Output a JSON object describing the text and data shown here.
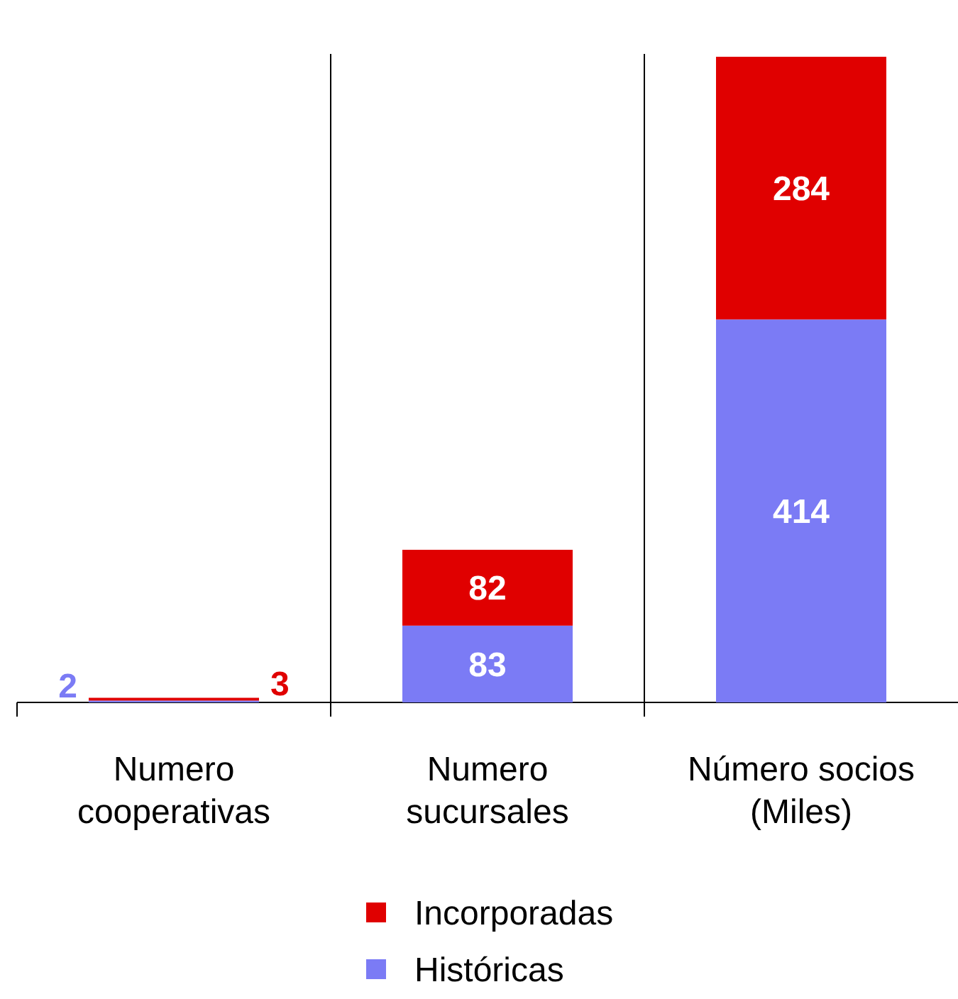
{
  "chart_data": {
    "type": "bar",
    "stacked": true,
    "data_labels": true,
    "legend": "bottom",
    "categories": [
      "Numero cooperativas",
      "Numero sucursales",
      "Número socios (Miles)"
    ],
    "series": [
      {
        "name": "Históricas",
        "color": "#7b7bf5",
        "values": [
          2,
          83,
          414
        ]
      },
      {
        "name": "Incorporadas",
        "color": "#e00000",
        "values": [
          3,
          82,
          284
        ]
      }
    ]
  }
}
